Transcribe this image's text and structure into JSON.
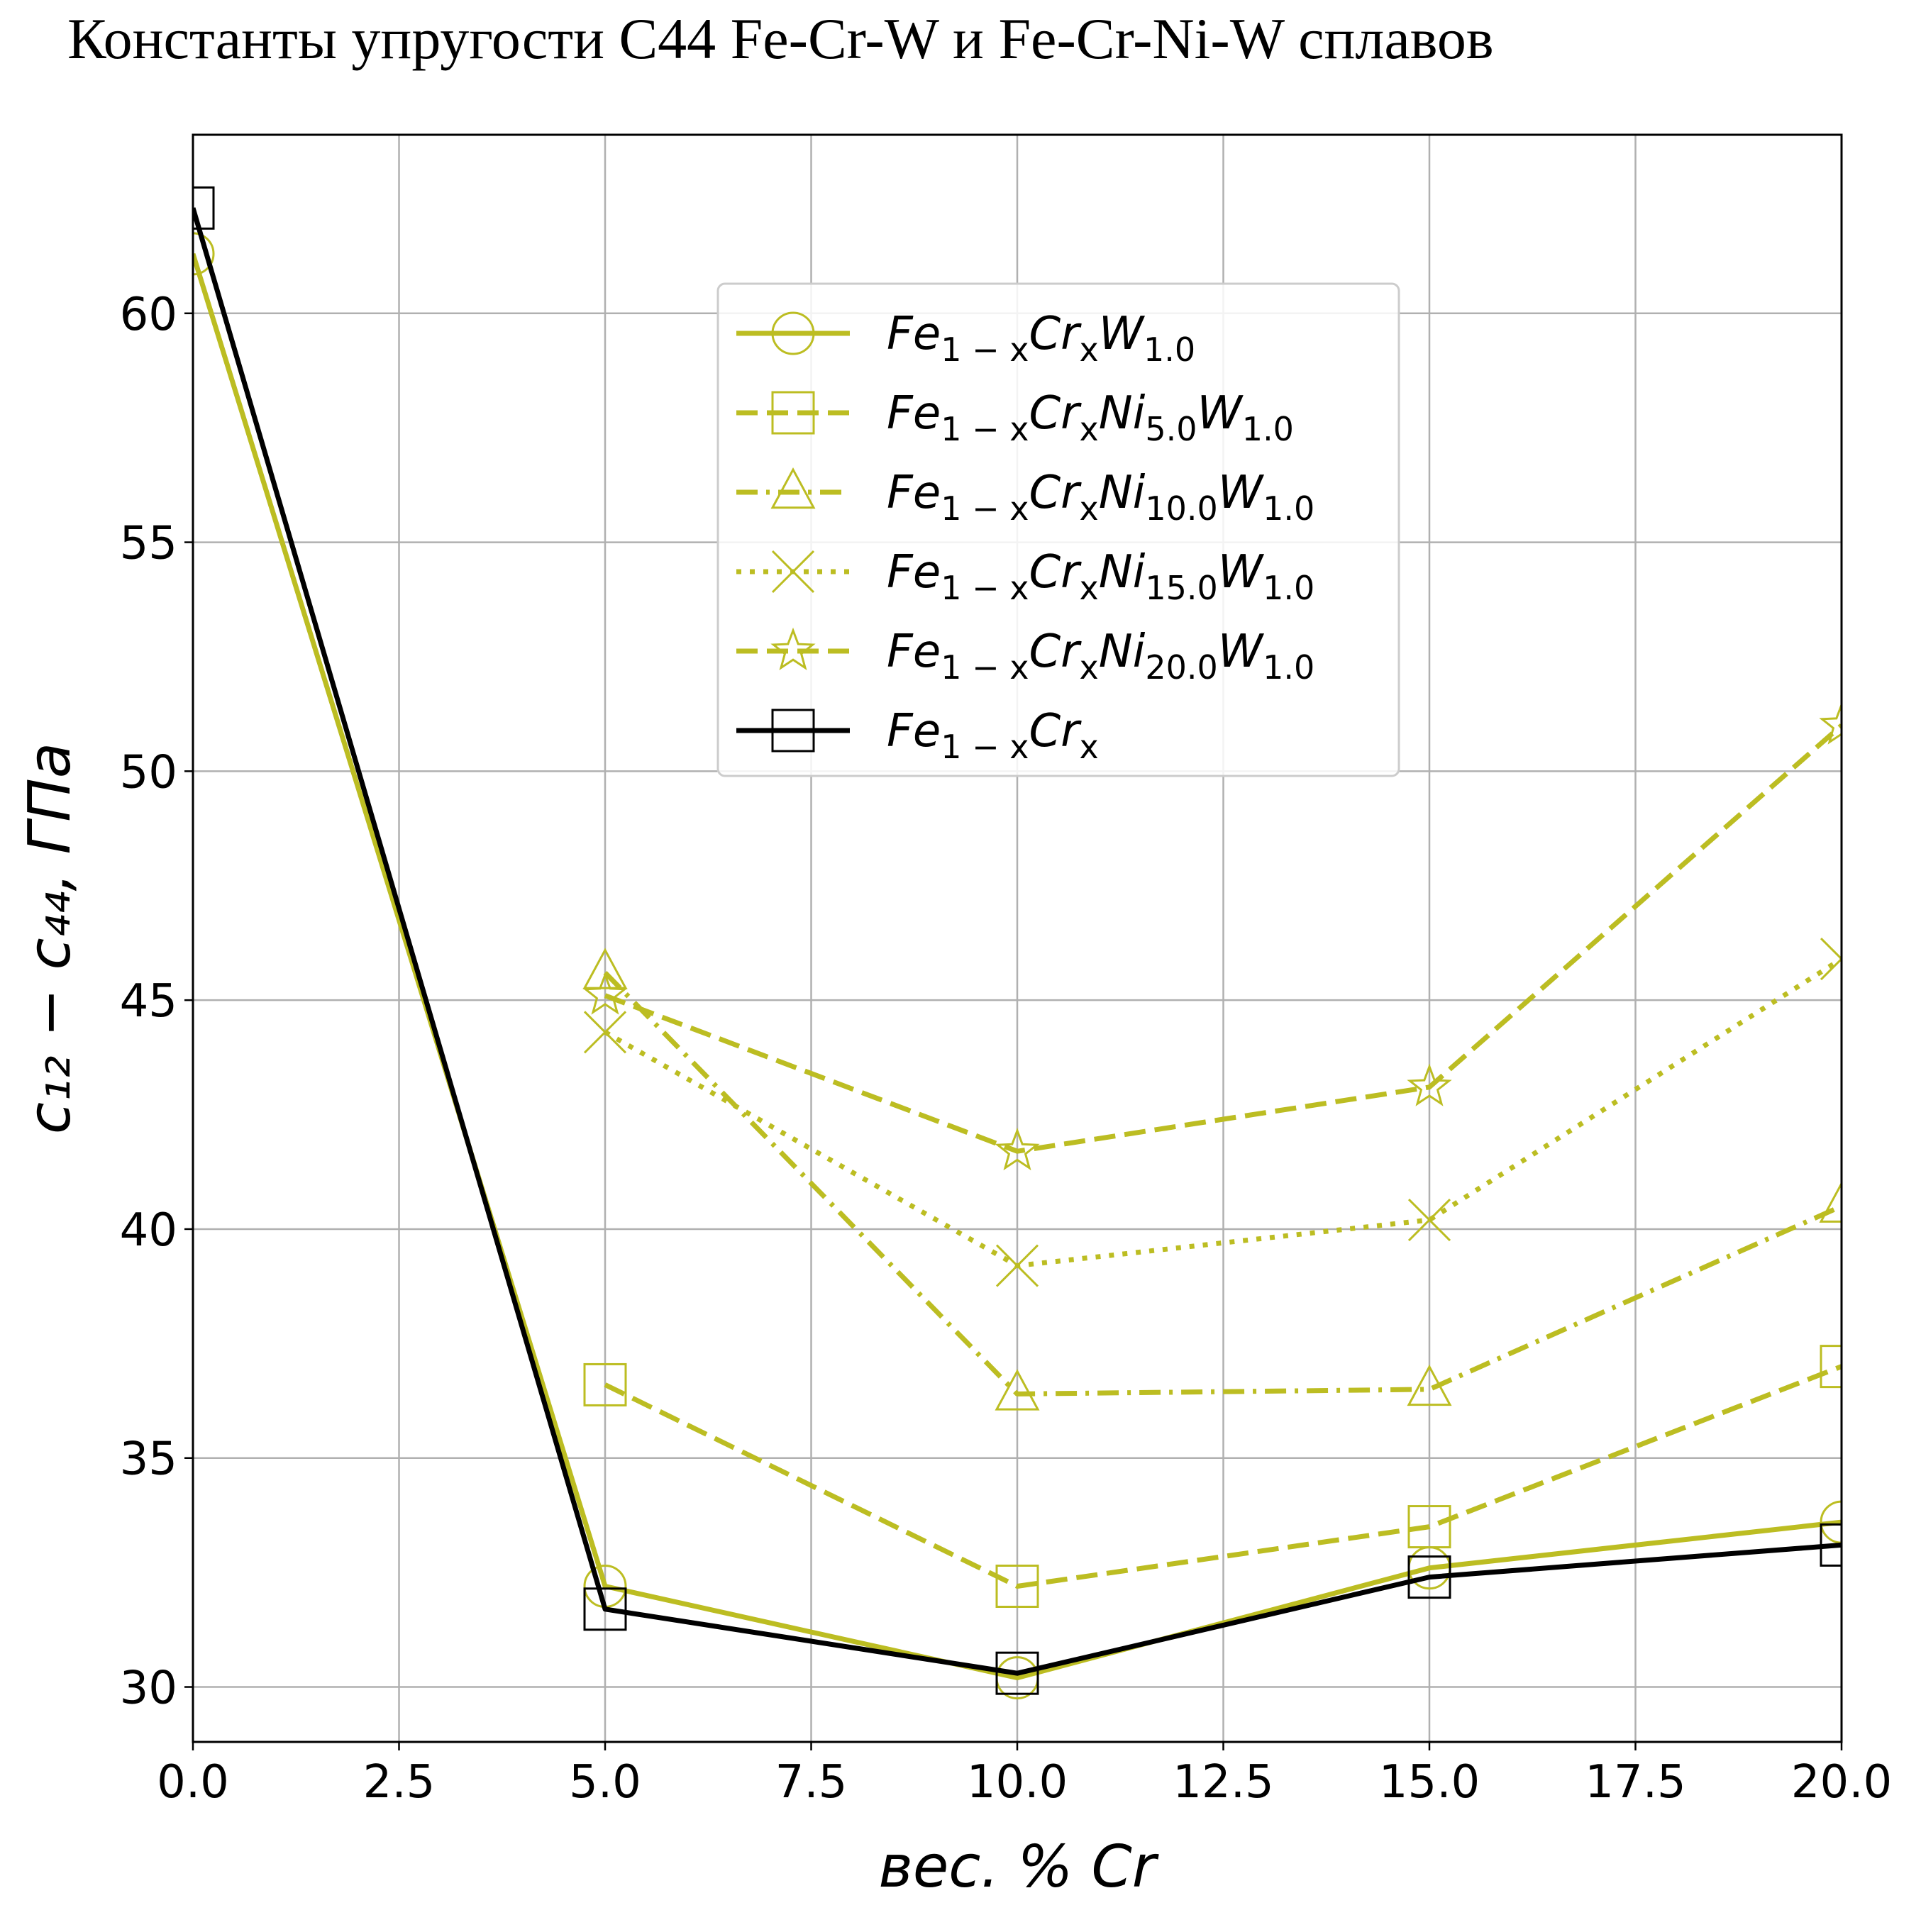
{
  "chart_data": {
    "type": "line",
    "title": "Константы упругости C44 Fe-Cr-W и Fe-Cr-Ni-W сплавов",
    "xlabel": "вес. % Cr",
    "ylabel": "c₁₂ − c₄₄,  ГПа",
    "xlim": [
      0,
      20
    ],
    "ylim": [
      28.8,
      63.9
    ],
    "x_ticks": [
      "0.0",
      "2.5",
      "5.0",
      "7.5",
      "10.0",
      "12.5",
      "15.0",
      "17.5",
      "20.0"
    ],
    "y_ticks": [
      "30",
      "35",
      "40",
      "45",
      "50",
      "55",
      "60"
    ],
    "grid": true,
    "legend_position": "upper center",
    "series": [
      {
        "name": "Fe1−xCrxW1.0",
        "legend": {
          "base": "Fe",
          "s1": "1 − x",
          "m2": "Cr",
          "s2": "x",
          "m3": "",
          "s3": "",
          "m4": "W",
          "s4": "1.0"
        },
        "color": "#bcbd22",
        "dash": "solid",
        "marker": "circle",
        "x": [
          0,
          5,
          10,
          15,
          20
        ],
        "y": [
          61.3,
          32.2,
          30.2,
          32.6,
          33.6
        ]
      },
      {
        "name": "Fe1−xCrxNi5.0W1.0",
        "legend": {
          "base": "Fe",
          "s1": "1 − x",
          "m2": "Cr",
          "s2": "x",
          "m3": "Ni",
          "s3": "5.0",
          "m4": "W",
          "s4": "1.0"
        },
        "color": "#bcbd22",
        "dash": "dashed",
        "marker": "square",
        "x": [
          5,
          10,
          15,
          20
        ],
        "y": [
          36.6,
          32.2,
          33.5,
          37.0
        ]
      },
      {
        "name": "Fe1−xCrxNi10.0W1.0",
        "legend": {
          "base": "Fe",
          "s1": "1 − x",
          "m2": "Cr",
          "s2": "x",
          "m3": "Ni",
          "s3": "10.0",
          "m4": "W",
          "s4": "1.0"
        },
        "color": "#bcbd22",
        "dash": "dashdot",
        "marker": "triangle",
        "x": [
          5,
          10,
          15,
          20
        ],
        "y": [
          45.6,
          36.4,
          36.5,
          40.5
        ]
      },
      {
        "name": "Fe1−xCrxNi15.0W1.0",
        "legend": {
          "base": "Fe",
          "s1": "1 − x",
          "m2": "Cr",
          "s2": "x",
          "m3": "Ni",
          "s3": "15.0",
          "m4": "W",
          "s4": "1.0"
        },
        "color": "#bcbd22",
        "dash": "dotted",
        "marker": "x",
        "x": [
          5,
          10,
          15,
          20
        ],
        "y": [
          44.3,
          39.2,
          40.2,
          45.9
        ]
      },
      {
        "name": "Fe1−xCrxNi20.0W1.0",
        "legend": {
          "base": "Fe",
          "s1": "1 − x",
          "m2": "Cr",
          "s2": "x",
          "m3": "Ni",
          "s3": "20.0",
          "m4": "W",
          "s4": "1.0"
        },
        "color": "#bcbd22",
        "dash": "dashed",
        "marker": "star",
        "x": [
          5,
          10,
          15,
          20
        ],
        "y": [
          45.1,
          41.7,
          43.1,
          51.0
        ]
      },
      {
        "name": "Fe1−xCrx",
        "legend": {
          "base": "Fe",
          "s1": "1 − x",
          "m2": "Cr",
          "s2": "x",
          "m3": "",
          "s3": "",
          "m4": "",
          "s4": ""
        },
        "color": "#000000",
        "dash": "solid",
        "marker": "square",
        "x": [
          0,
          5,
          10,
          15,
          20
        ],
        "y": [
          62.3,
          31.7,
          30.3,
          32.4,
          33.1
        ]
      }
    ]
  }
}
